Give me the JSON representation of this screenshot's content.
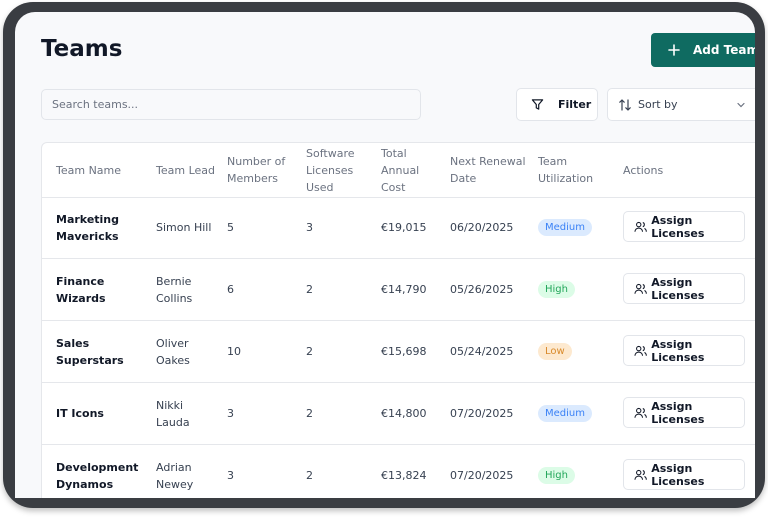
{
  "page": {
    "title": "Teams"
  },
  "toolbar": {
    "add_team_label": "Add Team",
    "search_placeholder": "Search teams...",
    "filter_label": "Filter",
    "sort_label": "Sort by"
  },
  "table": {
    "headers": [
      "Team Name",
      "Team Lead",
      "Number of Members",
      "Software Licenses Used",
      "Total Annual Cost",
      "Next Renewal Date",
      "Team Utilization",
      "Actions"
    ],
    "rows": [
      {
        "name": "Marketing Mavericks",
        "lead": "Simon Hill",
        "members": "5",
        "licenses": "3",
        "cost": "€19,015",
        "renewal": "06/20/2025",
        "utilization": "Medium",
        "action": "Assign Licenses"
      },
      {
        "name": "Finance Wizards",
        "lead": "Bernie Collins",
        "members": "6",
        "licenses": "2",
        "cost": "€14,790",
        "renewal": "05/26/2025",
        "utilization": "High",
        "action": "Assign Licenses"
      },
      {
        "name": "Sales Superstars",
        "lead": "Oliver Oakes",
        "members": "10",
        "licenses": "2",
        "cost": "€15,698",
        "renewal": "05/24/2025",
        "utilization": "Low",
        "action": "Assign Licenses"
      },
      {
        "name": "IT Icons",
        "lead": "Nikki Lauda",
        "members": "3",
        "licenses": "2",
        "cost": "€14,800",
        "renewal": "07/20/2025",
        "utilization": "Medium",
        "action": "Assign Licenses"
      },
      {
        "name": "Development Dynamos",
        "lead": "Adrian Newey",
        "members": "3",
        "licenses": "2",
        "cost": "€13,824",
        "renewal": "07/20/2025",
        "utilization": "High",
        "action": "Assign Licenses"
      }
    ]
  },
  "colors": {
    "accent": "#0f6b61",
    "medium": "#3b82f6",
    "high": "#22a65a",
    "low": "#d98a2b"
  }
}
